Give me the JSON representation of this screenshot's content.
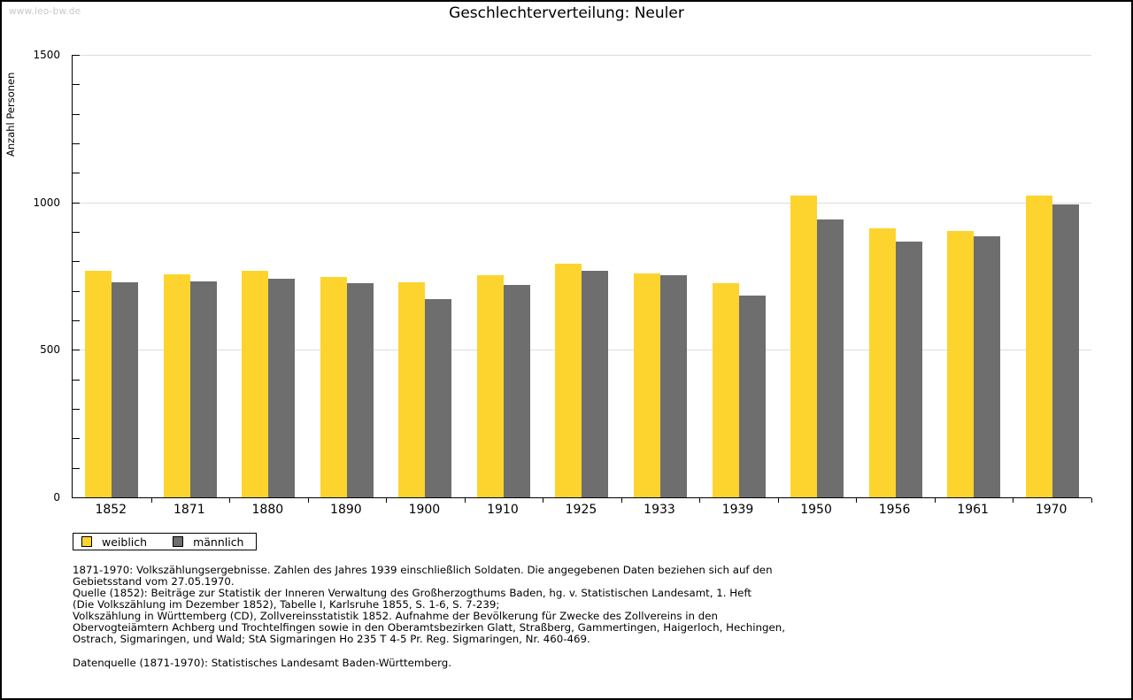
{
  "watermark": "www.leo-bw.de",
  "chart_data": {
    "type": "bar",
    "title": "Geschlechterverteilung: Neuler",
    "xlabel": "",
    "ylabel": "Anzahl Personen",
    "ylim": [
      0,
      1500
    ],
    "y_major_ticks": [
      0,
      500,
      1000,
      1500
    ],
    "y_minor_step": 100,
    "grid": true,
    "legend_position": "bottom-left",
    "categories": [
      "1852",
      "1871",
      "1880",
      "1890",
      "1900",
      "1910",
      "1925",
      "1933",
      "1939",
      "1950",
      "1956",
      "1961",
      "1970"
    ],
    "series": [
      {
        "name": "weiblich",
        "color": "#FDD42E",
        "values": [
          768,
          757,
          768,
          746,
          728,
          754,
          793,
          760,
          725,
          1024,
          913,
          903,
          1024
        ]
      },
      {
        "name": "männlich",
        "color": "#6E6E6E",
        "values": [
          730,
          733,
          741,
          725,
          672,
          720,
          767,
          752,
          684,
          943,
          868,
          886,
          993
        ]
      }
    ]
  },
  "footnotes": {
    "lines": [
      "1871-1970: Volkszählungsergebnisse. Zahlen des Jahres 1939 einschließlich Soldaten. Die angegebenen Daten beziehen sich auf den",
      "Gebietsstand vom 27.05.1970.",
      "Quelle (1852): Beiträge zur Statistik der Inneren Verwaltung des Großherzogthums Baden, hg. v. Statistischen Landesamt, 1. Heft",
      "(Die Volkszählung im Dezember 1852), Tabelle I, Karlsruhe 1855, S. 1-6, S. 7-239;",
      "Volkszählung in Württemberg (CD), Zollvereinsstatistik 1852. Aufnahme der Bevölkerung für Zwecke des Zollvereins in den",
      "Obervogteiämtern Achberg und Trochtelfingen sowie in den Oberamtsbezirken Glatt, Straßberg, Gammertingen, Haigerloch, Hechingen,",
      "Ostrach, Sigmaringen, und Wald; StA Sigmaringen Ho 235 T 4-5 Pr. Reg. Sigmaringen, Nr. 460-469."
    ],
    "source": "Datenquelle (1871-1970): Statistisches Landesamt Baden-Württemberg."
  },
  "colors": {
    "female_bar": "#FDD42E",
    "male_bar": "#6E6E6E",
    "gridline": "#DDDDDD",
    "watermark": "#C9C9C9",
    "axis": "#000000",
    "frame_border": "#000000"
  }
}
